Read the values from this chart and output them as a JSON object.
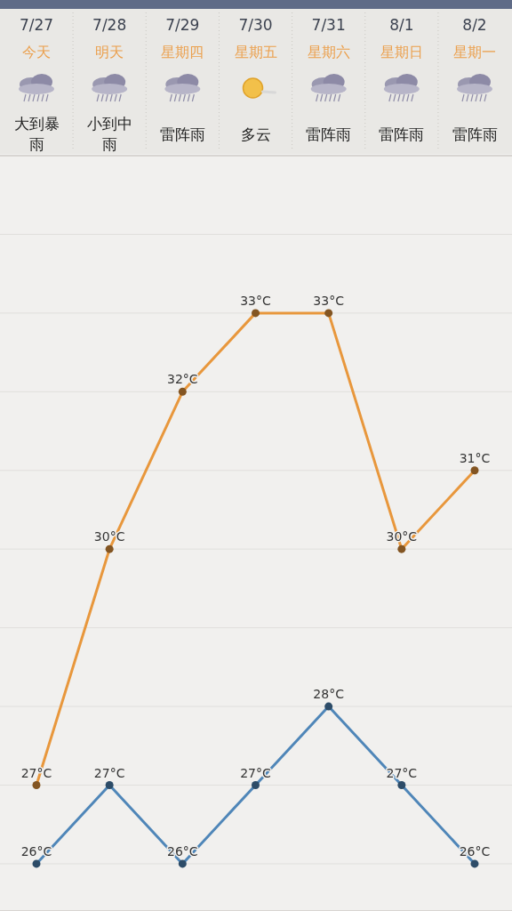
{
  "chart_data": {
    "type": "line",
    "categories": [
      "7/27",
      "7/28",
      "7/29",
      "7/30",
      "7/31",
      "8/1",
      "8/2"
    ],
    "annotations": [
      "今天",
      "明天",
      "星期四",
      "星期五",
      "星期六",
      "星期日",
      "星期一",
      "大到暴雨",
      "小到中雨",
      "雷阵雨",
      "多云",
      "雷阵雨",
      "雷阵雨",
      "雷阵雨"
    ],
    "series": [
      {
        "color": "#e8973c",
        "values": [
          27,
          30,
          32,
          33,
          33,
          30,
          31
        ],
        "value_labels": [
          "27°C",
          "30°C",
          "32°C",
          "33°C",
          "33°C",
          "30°C",
          "31°C"
        ]
      },
      {
        "color": "#4f86b8",
        "values": [
          26,
          27,
          26,
          27,
          28,
          27,
          26
        ],
        "value_labels": [
          "26°C",
          "27°C",
          "26°C",
          "27°C",
          "28°C",
          "27°C",
          "26°C"
        ]
      }
    ],
    "ylim": [
      25.4,
      35
    ],
    "yticks": [
      {
        "value": 26,
        "label": null
      },
      {
        "value": 27,
        "label": null
      },
      {
        "value": 28,
        "label": null
      },
      {
        "value": 29,
        "label": null
      },
      {
        "value": 30,
        "label": null
      },
      {
        "value": 31,
        "label": null
      },
      {
        "value": 32,
        "label": null
      },
      {
        "value": 33,
        "label": null
      },
      {
        "value": 34,
        "label": null
      }
    ],
    "grid": "y",
    "marker": "circle",
    "line_style": "solid"
  }
}
